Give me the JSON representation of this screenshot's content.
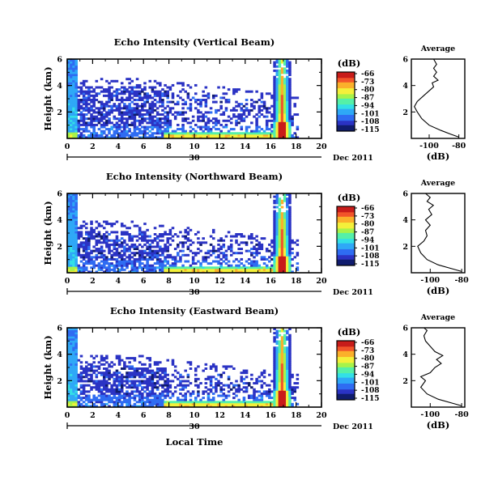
{
  "chart_data": [
    {
      "type": "heatmap",
      "title": "Echo Intensity (Vertical Beam)",
      "ylabel": "Height (km)",
      "xlim": [
        0,
        20
      ],
      "ylim": [
        0,
        6
      ],
      "x_ticks": [
        "0",
        "2",
        "4",
        "6",
        "8",
        "10",
        "12",
        "14",
        "16",
        "18",
        "20"
      ],
      "y_ticks": [
        "2",
        "4",
        "6"
      ],
      "date_day": "30",
      "date_label": "Dec 2011",
      "colorbar": {
        "unit": "(dB)",
        "ticks": [
          "-66",
          "-73",
          "-80",
          "-87",
          "-94",
          "-101",
          "-108",
          "-115"
        ]
      },
      "profile": {
        "title": "Average",
        "xlabel": "(dB)",
        "x_ticks": [
          "-100",
          "-80"
        ],
        "xlim": [
          -112,
          -76
        ],
        "y_ticks": [
          "2",
          "4",
          "6"
        ],
        "points": [
          [
            -80,
            0.1
          ],
          [
            -85,
            0.3
          ],
          [
            -92,
            0.6
          ],
          [
            -100,
            1.0
          ],
          [
            -105,
            1.5
          ],
          [
            -108,
            2.0
          ],
          [
            -110,
            2.4
          ],
          [
            -108,
            2.8
          ],
          [
            -104,
            3.2
          ],
          [
            -100,
            3.6
          ],
          [
            -97,
            3.9
          ],
          [
            -98,
            4.2
          ],
          [
            -94,
            4.4
          ],
          [
            -97,
            4.7
          ],
          [
            -95,
            5.0
          ],
          [
            -97,
            5.3
          ],
          [
            -95,
            5.6
          ],
          [
            -97,
            6.0
          ]
        ]
      }
    },
    {
      "type": "heatmap",
      "title": "Echo Intensity (Northward Beam)",
      "ylabel": "Height (km)",
      "xlim": [
        0,
        20
      ],
      "ylim": [
        0,
        6
      ],
      "x_ticks": [
        "0",
        "2",
        "4",
        "6",
        "8",
        "10",
        "12",
        "14",
        "16",
        "18",
        "20"
      ],
      "y_ticks": [
        "2",
        "4",
        "6"
      ],
      "date_day": "30",
      "date_label": "Dec 2011",
      "colorbar": {
        "unit": "(dB)",
        "ticks": [
          "-66",
          "-73",
          "-80",
          "-87",
          "-94",
          "-101",
          "-108",
          "-115"
        ]
      },
      "profile": {
        "title": "Average",
        "xlabel": "(dB)",
        "x_ticks": [
          "-100",
          "-80"
        ],
        "xlim": [
          -112,
          -78
        ],
        "y_ticks": [
          "2",
          "4",
          "6"
        ],
        "points": [
          [
            -80,
            0.1
          ],
          [
            -86,
            0.3
          ],
          [
            -95,
            0.6
          ],
          [
            -102,
            1.0
          ],
          [
            -106,
            1.5
          ],
          [
            -108,
            2.0
          ],
          [
            -104,
            2.4
          ],
          [
            -102,
            2.8
          ],
          [
            -103,
            3.2
          ],
          [
            -100,
            3.6
          ],
          [
            -103,
            4.0
          ],
          [
            -99,
            4.4
          ],
          [
            -101,
            4.8
          ],
          [
            -98,
            5.1
          ],
          [
            -102,
            5.4
          ],
          [
            -100,
            5.7
          ],
          [
            -103,
            6.0
          ]
        ]
      }
    },
    {
      "type": "heatmap",
      "title": "Echo Intensity (Eastward Beam)",
      "ylabel": "Height (km)",
      "xlabel": "Local Time",
      "xlim": [
        0,
        20
      ],
      "ylim": [
        0,
        6
      ],
      "x_ticks": [
        "0",
        "2",
        "4",
        "6",
        "8",
        "10",
        "12",
        "14",
        "16",
        "18",
        "20"
      ],
      "y_ticks": [
        "2",
        "4",
        "6"
      ],
      "date_day": "30",
      "date_label": "Dec 2011",
      "colorbar": {
        "unit": "(dB)",
        "ticks": [
          "-66",
          "-73",
          "-80",
          "-87",
          "-94",
          "-101",
          "-108",
          "-115"
        ]
      },
      "profile": {
        "title": "Average",
        "xlabel": "(dB)",
        "x_ticks": [
          "-100",
          "-80"
        ],
        "xlim": [
          -112,
          -78
        ],
        "y_ticks": [
          "2",
          "4",
          "6"
        ],
        "points": [
          [
            -80,
            0.1
          ],
          [
            -86,
            0.3
          ],
          [
            -95,
            0.6
          ],
          [
            -102,
            1.0
          ],
          [
            -106,
            1.5
          ],
          [
            -103,
            2.0
          ],
          [
            -106,
            2.3
          ],
          [
            -100,
            2.6
          ],
          [
            -97,
            3.0
          ],
          [
            -93,
            3.3
          ],
          [
            -96,
            3.6
          ],
          [
            -92,
            3.9
          ],
          [
            -97,
            4.2
          ],
          [
            -100,
            4.6
          ],
          [
            -103,
            5.0
          ],
          [
            -104,
            5.4
          ],
          [
            -102,
            5.8
          ],
          [
            -104,
            6.0
          ]
        ]
      }
    }
  ],
  "colors": {
    "colormap": [
      "#101c6e",
      "#2b33c4",
      "#2f6cf2",
      "#2fa8f7",
      "#33e0e6",
      "#55f0a8",
      "#a7f34a",
      "#f4f03a",
      "#fbb02b",
      "#f2552a",
      "#c81c1a"
    ]
  }
}
